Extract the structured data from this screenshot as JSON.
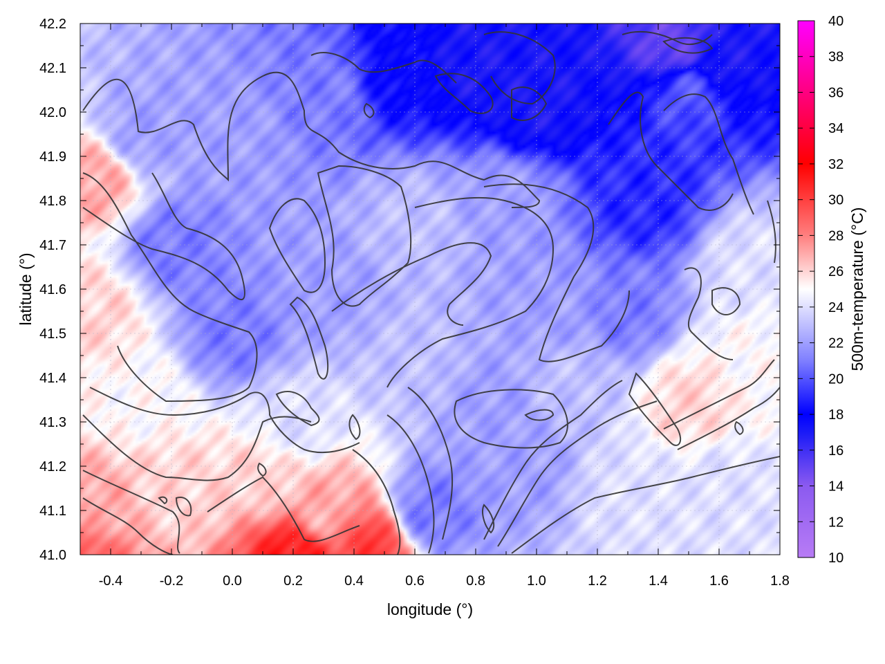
{
  "chart_data": {
    "type": "heatmap",
    "title": "",
    "xlabel": "longitude (°)",
    "ylabel": "latitude (°)",
    "colorbar_label": "500m-temperature (°C)",
    "xlim": [
      -0.5,
      1.8
    ],
    "ylim": [
      41.0,
      42.2
    ],
    "clim": [
      10,
      40
    ],
    "x_ticks": [
      -0.4,
      -0.2,
      0.0,
      0.2,
      0.4,
      0.6,
      0.8,
      1.0,
      1.2,
      1.4,
      1.6,
      1.8
    ],
    "x_tick_labels": [
      "-0.4",
      "-0.2",
      "0.0",
      "0.2",
      "0.4",
      "0.6",
      "0.8",
      "1.0",
      "1.2",
      "1.4",
      "1.6",
      "1.8"
    ],
    "y_ticks": [
      41.0,
      41.1,
      41.2,
      41.3,
      41.4,
      41.5,
      41.6,
      41.7,
      41.8,
      41.9,
      42.0,
      42.1,
      42.2
    ],
    "y_tick_labels": [
      "41.0",
      "41.1",
      "41.2",
      "41.3",
      "41.4",
      "41.5",
      "41.6",
      "41.7",
      "41.8",
      "41.9",
      "42.0",
      "42.1",
      "42.2"
    ],
    "colorbar_ticks": [
      10,
      12,
      14,
      16,
      18,
      20,
      22,
      24,
      26,
      28,
      30,
      32,
      34,
      36,
      38,
      40
    ],
    "colorbar_tick_labels": [
      "10",
      "12",
      "14",
      "16",
      "18",
      "20",
      "22",
      "24",
      "26",
      "28",
      "30",
      "32",
      "34",
      "36",
      "38",
      "40"
    ],
    "colormap": [
      [
        10,
        "#b87cf5"
      ],
      [
        14,
        "#8b5af0"
      ],
      [
        17,
        "#1a1af7"
      ],
      [
        18,
        "#0000ff"
      ],
      [
        21,
        "#7f7fff"
      ],
      [
        25,
        "#ffffff"
      ],
      [
        28,
        "#ff7f7f"
      ],
      [
        32,
        "#ff0000"
      ],
      [
        36,
        "#ff0080"
      ],
      [
        40,
        "#ff00ff"
      ]
    ],
    "grid": true,
    "field_points": [
      {
        "lon": -0.5,
        "lat": 41.0,
        "value": 29
      },
      {
        "lon": 0.2,
        "lat": 41.0,
        "value": 31
      },
      {
        "lon": 0.45,
        "lat": 41.02,
        "value": 30
      },
      {
        "lon": -0.45,
        "lat": 41.1,
        "value": 27
      },
      {
        "lon": -0.45,
        "lat": 41.55,
        "value": 26
      },
      {
        "lon": -0.45,
        "lat": 41.85,
        "value": 27
      },
      {
        "lon": 0.1,
        "lat": 41.18,
        "value": 26
      },
      {
        "lon": 0.3,
        "lat": 41.1,
        "value": 27
      },
      {
        "lon": -0.2,
        "lat": 41.15,
        "value": 26
      },
      {
        "lon": 0.2,
        "lat": 41.3,
        "value": 24
      },
      {
        "lon": -0.3,
        "lat": 41.35,
        "value": 25
      },
      {
        "lon": 0.65,
        "lat": 41.1,
        "value": 21
      },
      {
        "lon": 0.95,
        "lat": 41.2,
        "value": 22
      },
      {
        "lon": 1.3,
        "lat": 41.15,
        "value": 24
      },
      {
        "lon": 1.6,
        "lat": 41.15,
        "value": 24
      },
      {
        "lon": 1.5,
        "lat": 41.35,
        "value": 26
      },
      {
        "lon": 1.7,
        "lat": 41.45,
        "value": 25
      },
      {
        "lon": 1.7,
        "lat": 41.65,
        "value": 24
      },
      {
        "lon": 1.3,
        "lat": 41.55,
        "value": 21
      },
      {
        "lon": 1.35,
        "lat": 41.8,
        "value": 19
      },
      {
        "lon": 1.5,
        "lat": 42.05,
        "value": 20
      },
      {
        "lon": 1.6,
        "lat": 42.12,
        "value": 17
      },
      {
        "lon": 1.45,
        "lat": 42.15,
        "value": 15
      },
      {
        "lon": 0.8,
        "lat": 42.12,
        "value": 17
      },
      {
        "lon": 1.0,
        "lat": 42.02,
        "value": 17
      },
      {
        "lon": 0.55,
        "lat": 42.1,
        "value": 18
      },
      {
        "lon": 0.3,
        "lat": 42.05,
        "value": 21
      },
      {
        "lon": 0.0,
        "lat": 41.95,
        "value": 22
      },
      {
        "lon": -0.3,
        "lat": 41.95,
        "value": 22
      },
      {
        "lon": -0.2,
        "lat": 41.7,
        "value": 21
      },
      {
        "lon": 0.0,
        "lat": 41.5,
        "value": 21
      },
      {
        "lon": 0.3,
        "lat": 41.6,
        "value": 22
      },
      {
        "lon": 0.6,
        "lat": 41.75,
        "value": 23
      },
      {
        "lon": 0.9,
        "lat": 41.8,
        "value": 22
      },
      {
        "lon": 1.05,
        "lat": 41.55,
        "value": 22
      },
      {
        "lon": 0.6,
        "lat": 41.45,
        "value": 23
      },
      {
        "lon": 0.85,
        "lat": 41.35,
        "value": 22
      },
      {
        "lon": 1.1,
        "lat": 41.4,
        "value": 23
      }
    ]
  }
}
